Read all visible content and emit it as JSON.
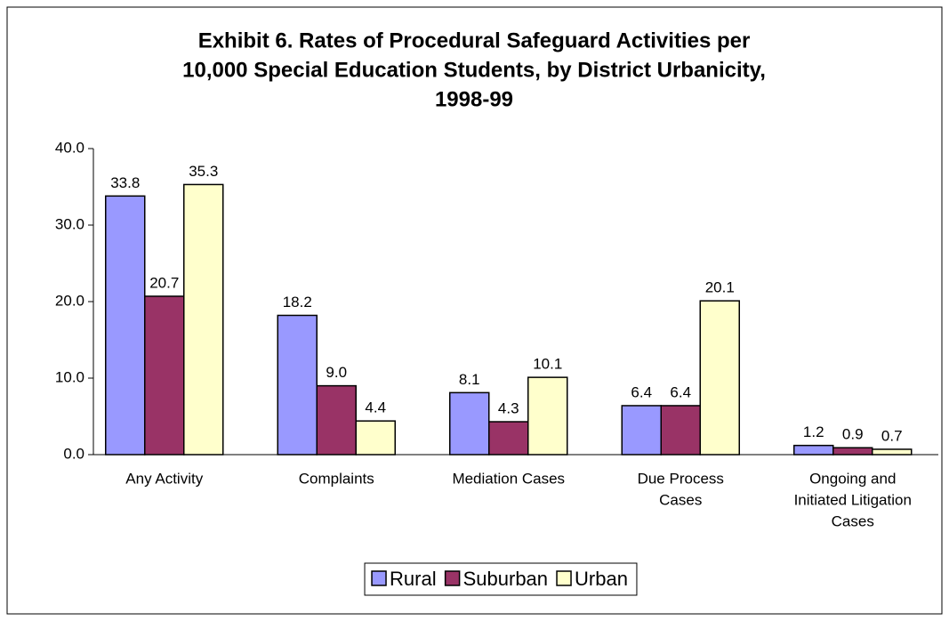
{
  "chart_data": {
    "type": "bar",
    "title": [
      "Exhibit 6. Rates of Procedural Safeguard Activities per",
      "10,000 Special Education Students, by District Urbanicity,",
      "1998-99"
    ],
    "categories": [
      [
        "Any Activity"
      ],
      [
        "Complaints"
      ],
      [
        "Mediation Cases"
      ],
      [
        "Due Process",
        "Cases"
      ],
      [
        "Ongoing and",
        "Initiated Litigation",
        "Cases"
      ]
    ],
    "series": [
      {
        "name": "Rural",
        "color": "#9999ff",
        "values": [
          33.8,
          18.2,
          8.1,
          6.4,
          1.2
        ],
        "value_labels": [
          "33.8",
          "18.2",
          "8.1",
          "6.4",
          "1.2"
        ]
      },
      {
        "name": "Suburban",
        "color": "#993366",
        "values": [
          20.7,
          9.0,
          4.3,
          6.4,
          0.9
        ],
        "value_labels": [
          "20.7",
          "9.0",
          "4.3",
          "6.4",
          "0.9"
        ]
      },
      {
        "name": "Urban",
        "color": "#ffffcc",
        "values": [
          35.3,
          4.4,
          10.1,
          20.1,
          0.7
        ],
        "value_labels": [
          "35.3",
          "4.4",
          "10.1",
          "20.1",
          "0.7"
        ]
      }
    ],
    "ylim": [
      0,
      40
    ],
    "yticks": [
      {
        "value": 0,
        "label": "0.0"
      },
      {
        "value": 10,
        "label": "10.0"
      },
      {
        "value": 20,
        "label": "20.0"
      },
      {
        "value": 30,
        "label": "30.0"
      },
      {
        "value": 40,
        "label": "40.0"
      }
    ],
    "legend": "bottom"
  }
}
